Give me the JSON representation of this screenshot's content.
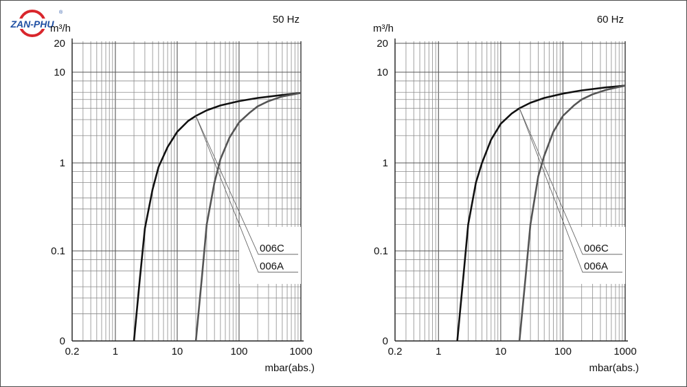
{
  "logo": {
    "text": "ZAN-PHU",
    "registered": "®",
    "colors": {
      "blue": "#1f4fa3",
      "red": "#d9262c"
    }
  },
  "chart_data": [
    {
      "type": "line",
      "title": "50 Hz",
      "ylabel": "m³/h",
      "xlabel": "mbar(abs.)",
      "x_scale": "log",
      "y_scale": "log",
      "xlim": [
        0.2,
        1000
      ],
      "x_ticks": [
        {
          "value": 0.2,
          "label": "0.2"
        },
        {
          "value": 1,
          "label": "1"
        },
        {
          "value": 10,
          "label": "10"
        },
        {
          "value": 100,
          "label": "100"
        },
        {
          "value": 1000,
          "label": "1000"
        }
      ],
      "y_ticks": [
        {
          "value": 0.01,
          "label": "0"
        },
        {
          "value": 0.1,
          "label": "0.1"
        },
        {
          "value": 1,
          "label": "1"
        },
        {
          "value": 10,
          "label": "10"
        },
        {
          "value": 20,
          "label": "20"
        }
      ],
      "grid": true,
      "series": [
        {
          "name": "006C",
          "color": "#111111",
          "x": [
            2,
            2.5,
            3,
            4,
            5,
            7,
            10,
            15,
            20,
            30,
            50,
            100,
            200,
            500,
            1000
          ],
          "y": [
            0.01,
            0.05,
            0.18,
            0.5,
            0.9,
            1.5,
            2.2,
            2.9,
            3.3,
            3.8,
            4.3,
            4.8,
            5.2,
            5.6,
            5.9
          ]
        },
        {
          "name": "006A",
          "color": "#555555",
          "x": [
            20,
            25,
            30,
            40,
            50,
            70,
            100,
            150,
            200,
            300,
            500,
            1000
          ],
          "y": [
            0.01,
            0.05,
            0.2,
            0.6,
            1.1,
            1.9,
            2.8,
            3.6,
            4.2,
            4.8,
            5.4,
            5.9
          ]
        }
      ],
      "legend": [
        "006C",
        "006A"
      ],
      "legend_placement": "right"
    },
    {
      "type": "line",
      "title": "60 Hz",
      "ylabel": "m³/h",
      "xlabel": "mbar(abs.)",
      "x_scale": "log",
      "y_scale": "log",
      "xlim": [
        0.2,
        1000
      ],
      "x_ticks": [
        {
          "value": 0.2,
          "label": "0.2"
        },
        {
          "value": 1,
          "label": "1"
        },
        {
          "value": 10,
          "label": "10"
        },
        {
          "value": 100,
          "label": "100"
        },
        {
          "value": 1000,
          "label": "1000"
        }
      ],
      "y_ticks": [
        {
          "value": 0.01,
          "label": "0"
        },
        {
          "value": 0.1,
          "label": "0.1"
        },
        {
          "value": 1,
          "label": "1"
        },
        {
          "value": 10,
          "label": "10"
        },
        {
          "value": 20,
          "label": "20"
        }
      ],
      "grid": true,
      "series": [
        {
          "name": "006C",
          "color": "#111111",
          "x": [
            2,
            2.5,
            3,
            4,
            5,
            7,
            10,
            15,
            20,
            30,
            50,
            100,
            200,
            500,
            1000
          ],
          "y": [
            0.01,
            0.05,
            0.2,
            0.6,
            1.0,
            1.8,
            2.7,
            3.5,
            4.0,
            4.6,
            5.2,
            5.8,
            6.3,
            6.8,
            7.1
          ]
        },
        {
          "name": "006A",
          "color": "#555555",
          "x": [
            20,
            25,
            30,
            40,
            50,
            70,
            100,
            150,
            200,
            300,
            500,
            1000
          ],
          "y": [
            0.01,
            0.05,
            0.2,
            0.7,
            1.2,
            2.2,
            3.3,
            4.3,
            5.0,
            5.7,
            6.4,
            7.1
          ]
        }
      ],
      "legend": [
        "006C",
        "006A"
      ],
      "legend_placement": "right"
    }
  ]
}
